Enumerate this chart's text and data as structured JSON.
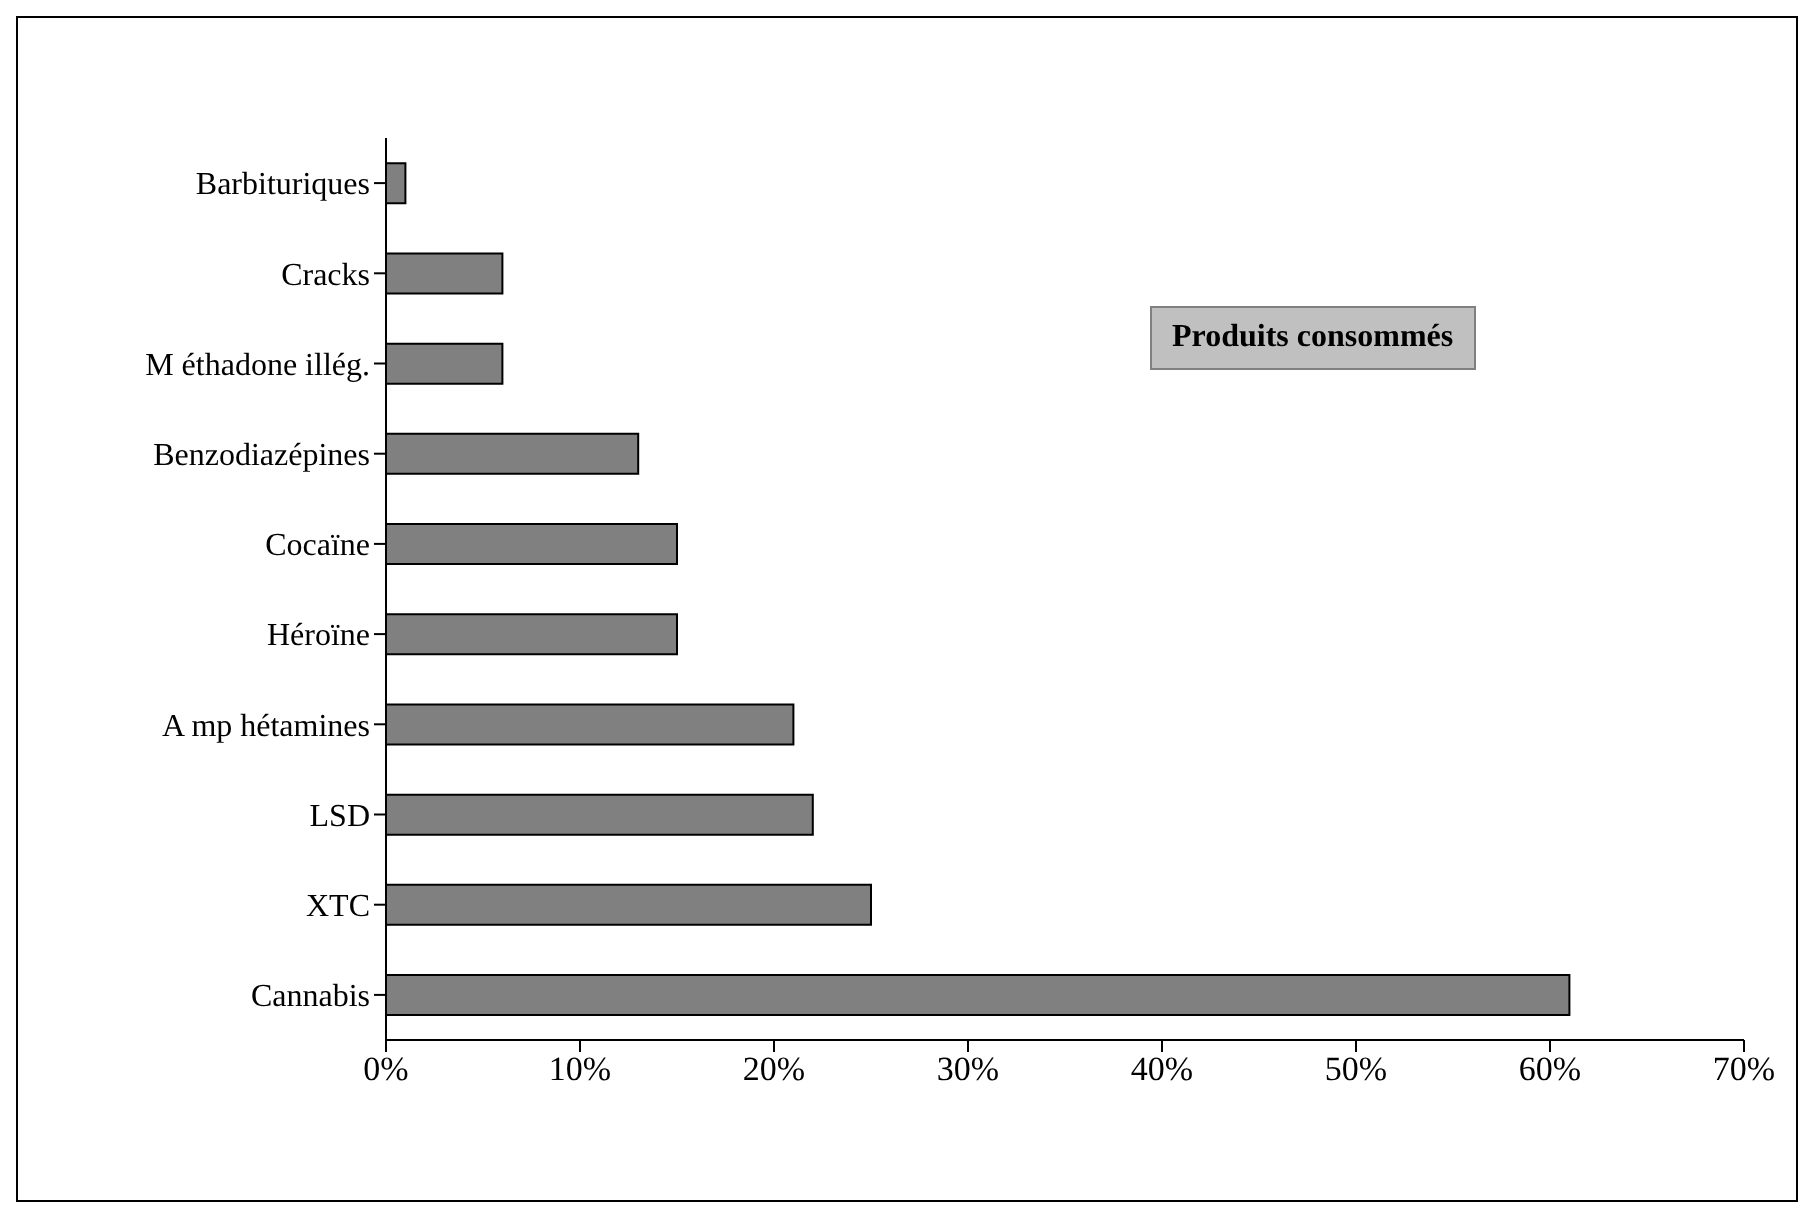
{
  "chart_data": {
    "type": "bar",
    "orientation": "horizontal",
    "title": "Produits consommés",
    "categories": [
      "Barbituriques",
      "Cracks",
      "M éthadone illég.",
      "Benzodiazépines",
      "Cocaïne",
      "Héroïne",
      "A mp hétamines",
      "LSD",
      "XTC",
      "Cannabis"
    ],
    "values": [
      1,
      6,
      6,
      13,
      15,
      15,
      21,
      22,
      25,
      61
    ],
    "color": "#808080",
    "xlim": [
      0,
      70
    ],
    "xticks": [
      {
        "value": 0,
        "label": "0%"
      },
      {
        "value": 10,
        "label": "10%"
      },
      {
        "value": 20,
        "label": "20%"
      },
      {
        "value": 30,
        "label": "30%"
      },
      {
        "value": 40,
        "label": "40%"
      },
      {
        "value": 50,
        "label": "50%"
      },
      {
        "value": 60,
        "label": "60%"
      },
      {
        "value": 70,
        "label": "70%"
      }
    ],
    "grid": false
  }
}
